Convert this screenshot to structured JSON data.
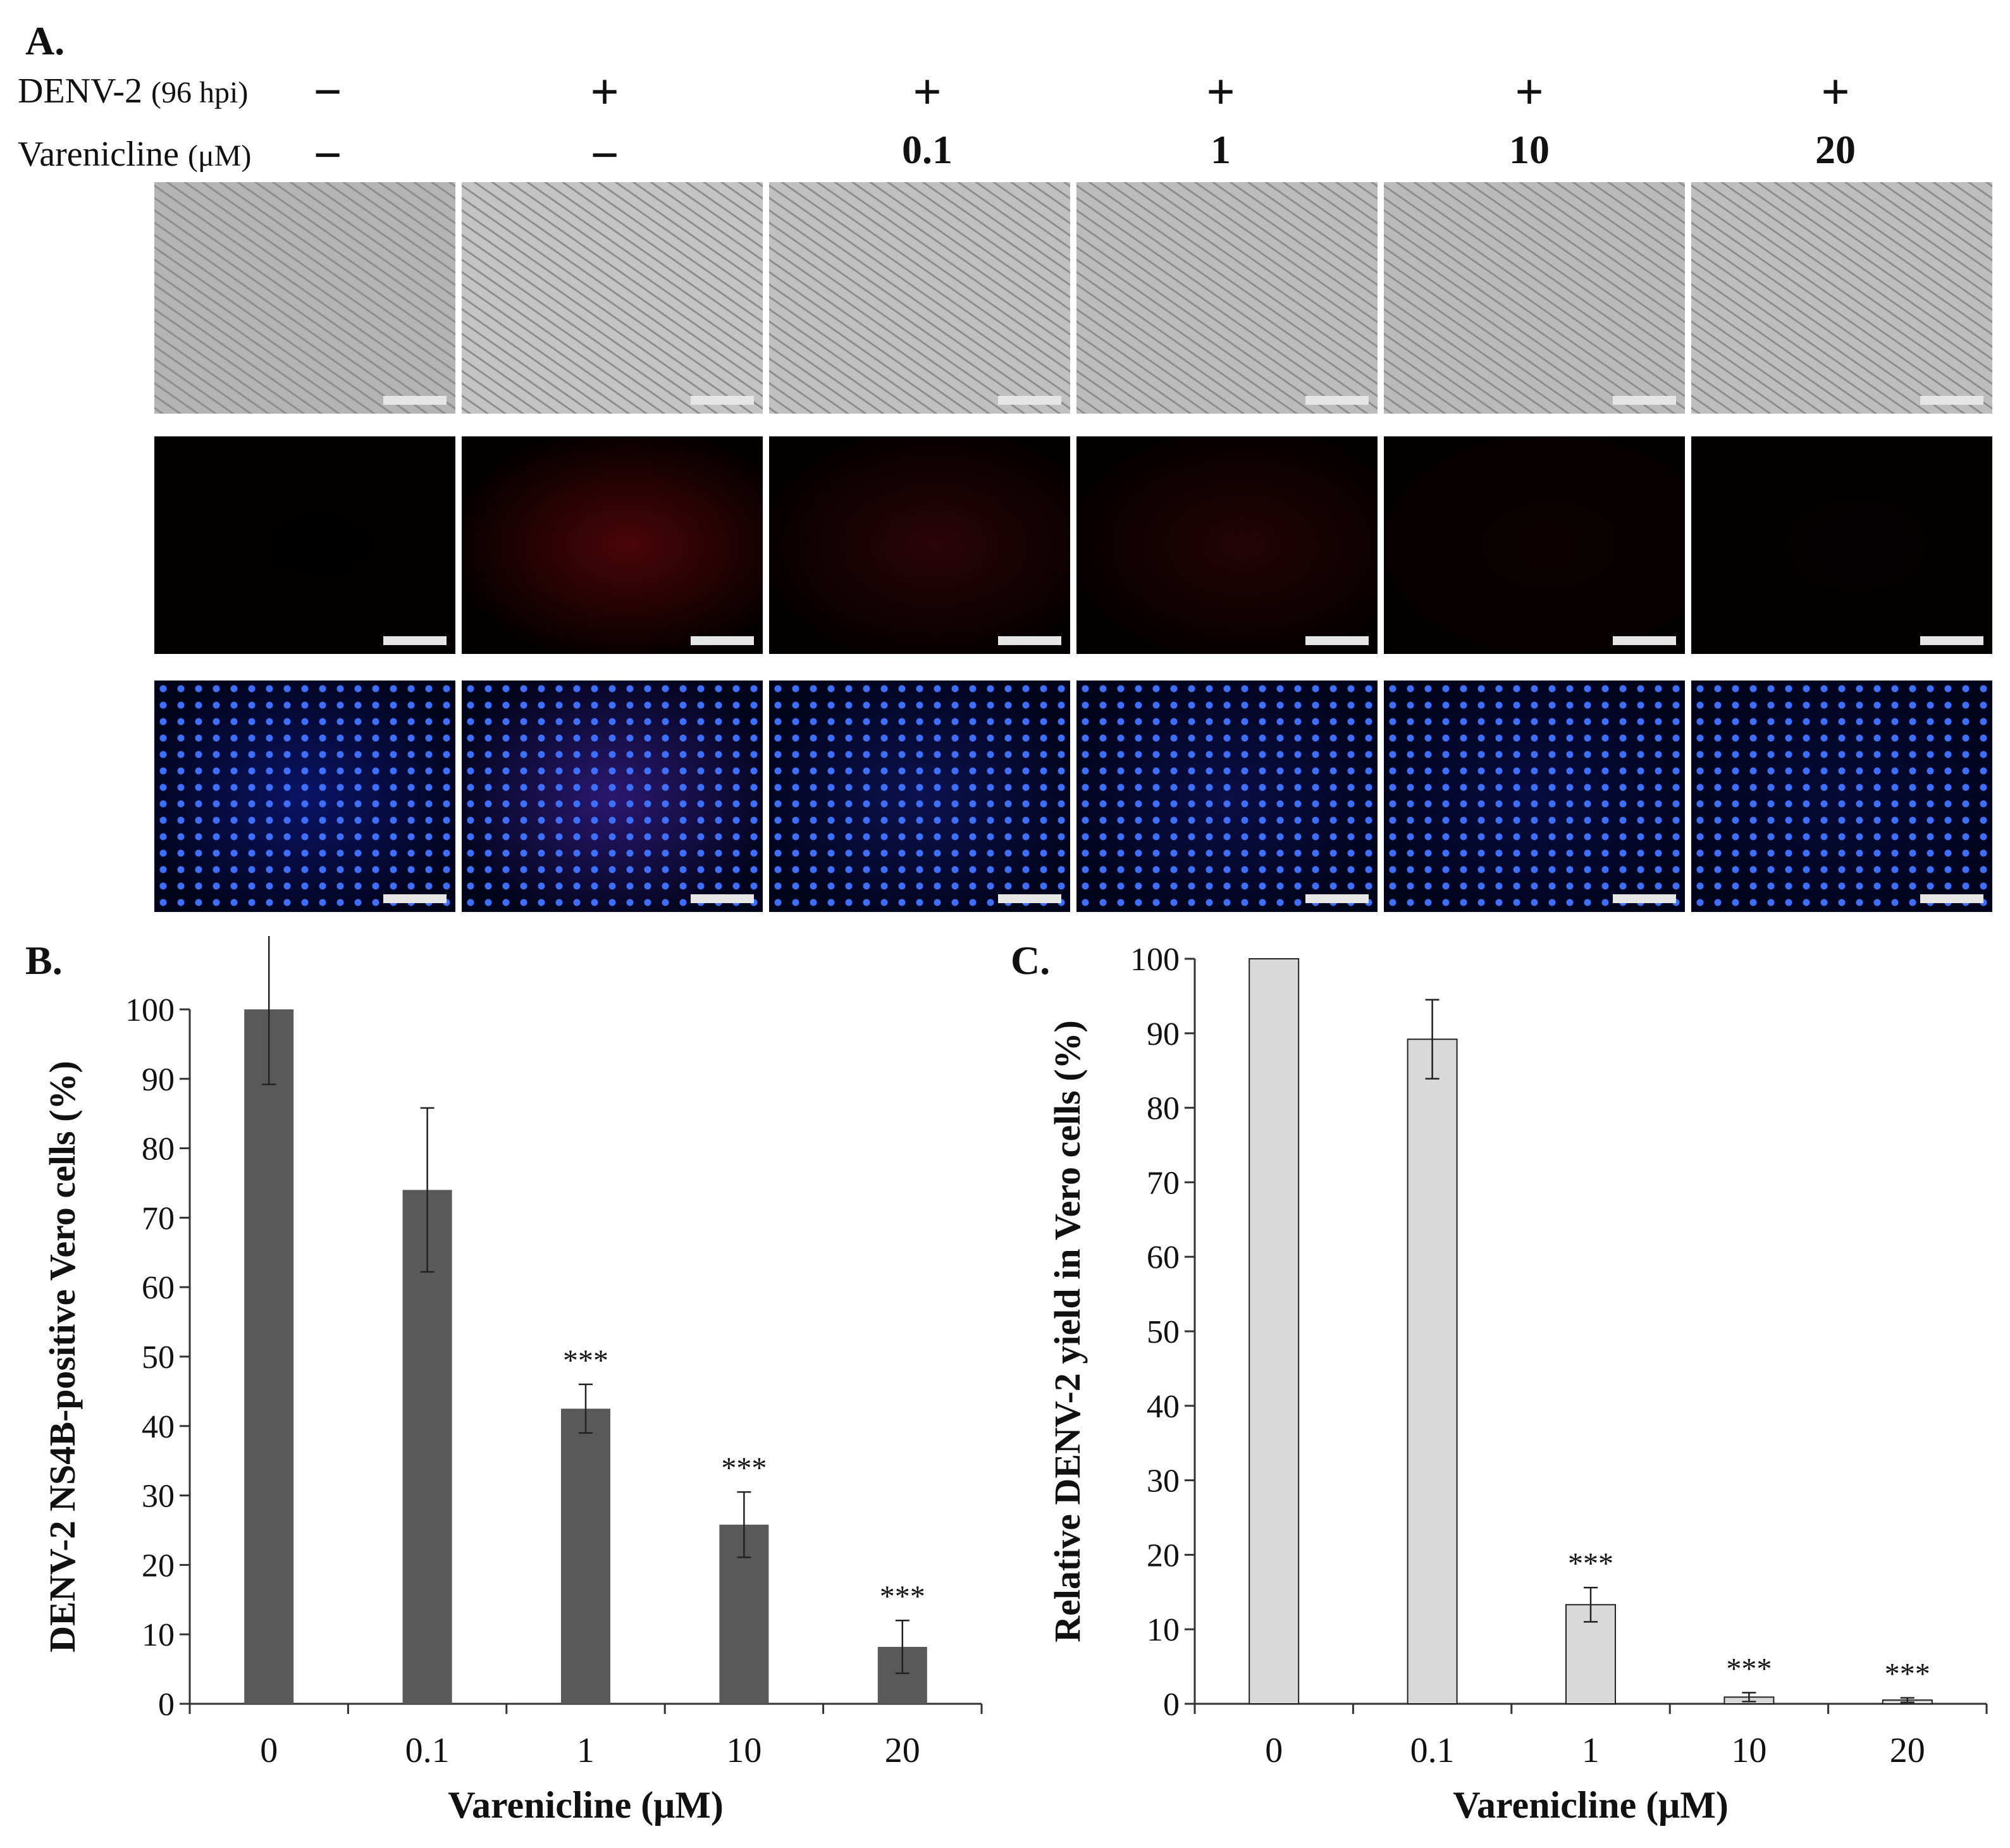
{
  "panelA": {
    "letter": "A.",
    "denv_label": "DENV-2",
    "denv_unit": "(96 hpi)",
    "drug_label": "Varenicline",
    "drug_unit": "(μM)",
    "denv_signs": [
      "−",
      "+",
      "+",
      "+",
      "+",
      "+"
    ],
    "drug_values": [
      "−",
      "−",
      "0.1",
      "1",
      "10",
      "20"
    ],
    "rows": [
      {
        "name": "phase-contrast",
        "colors": [
          "#b4b4b4",
          "#c4c4c4",
          "#c0c0c0",
          "#bcbcbc",
          "#bababa",
          "#bebebe"
        ]
      },
      {
        "name": "ns4b-red",
        "colors": [
          "#000000",
          "#4a0508",
          "#2a0408",
          "#240306",
          "#0c0102",
          "#050001"
        ]
      },
      {
        "name": "merged-dapi",
        "colors": [
          "#0a1466",
          "#2a1870",
          "#0c1250",
          "#0a0e46",
          "#060c40",
          "#050a36"
        ]
      }
    ]
  },
  "chart_data": [
    {
      "type": "bar",
      "panel": "B.",
      "categories": [
        "0",
        "0.1",
        "1",
        "10",
        "20"
      ],
      "values": [
        100,
        74,
        42.5,
        25.8,
        8.2
      ],
      "errors": [
        10.8,
        11.8,
        3.5,
        4.7,
        3.8
      ],
      "significance": [
        "",
        "",
        "***",
        "***",
        "***"
      ],
      "xlabel": "Varenicline (μM)",
      "ylabel": "DENV-2 NS4B-positive Vero cells (%)",
      "ylim": [
        0,
        100
      ],
      "yticks": [
        0,
        10,
        20,
        30,
        40,
        50,
        60,
        70,
        80,
        90,
        100
      ],
      "bar_color": "#595959",
      "grid": false
    },
    {
      "type": "bar",
      "panel": "C.",
      "categories": [
        "0",
        "0.1",
        "1",
        "10",
        "20"
      ],
      "values": [
        100,
        89.2,
        13.3,
        0.9,
        0.5
      ],
      "errors": [
        0,
        5.3,
        2.3,
        0.6,
        0.3
      ],
      "significance": [
        "",
        "",
        "***",
        "***",
        "***"
      ],
      "xlabel": "Varenicline (μM)",
      "ylabel": "Relative DENV-2 yield in Vero cells (%)",
      "ylim": [
        0,
        100
      ],
      "yticks": [
        0,
        10,
        20,
        30,
        40,
        50,
        60,
        70,
        80,
        90,
        100
      ],
      "bar_color": "#d9d9d9",
      "grid": false
    }
  ]
}
